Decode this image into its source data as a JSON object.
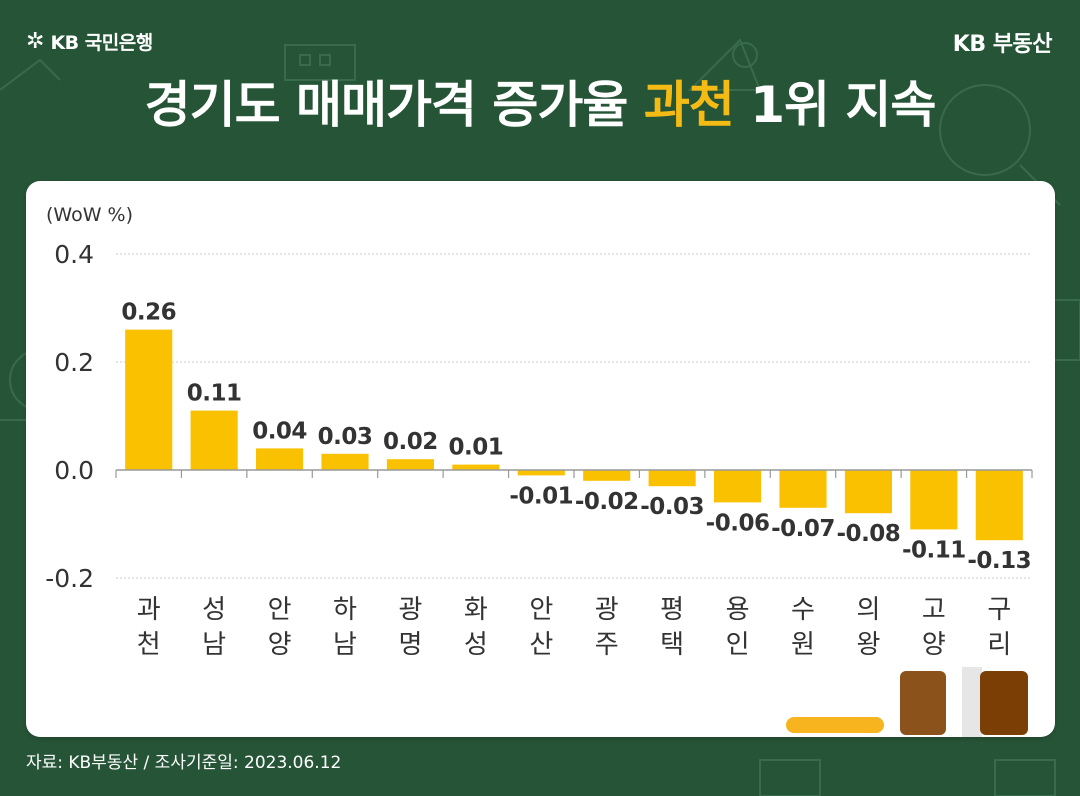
{
  "brand": {
    "bank_name": "KB 국민은행",
    "star_glyph": "✲",
    "realestate": "KB 부동산"
  },
  "headline": {
    "before": "경기도 매매가격 증가율 ",
    "highlight": "과천",
    "after": " 1위 지속"
  },
  "colors": {
    "background": "#265437",
    "bar": "#f9c100",
    "highlight": "#f4bb14",
    "card": "#ffffff"
  },
  "chart_data": {
    "type": "bar",
    "unit_label": "(WoW %)",
    "categories": [
      "과천",
      "성남",
      "안양",
      "하남",
      "광명",
      "화성",
      "안산",
      "광주",
      "평택",
      "용인",
      "수원",
      "의왕",
      "고양",
      "구리"
    ],
    "values": [
      0.26,
      0.11,
      0.04,
      0.03,
      0.02,
      0.01,
      -0.01,
      -0.02,
      -0.03,
      -0.06,
      -0.07,
      -0.08,
      -0.11,
      -0.13
    ],
    "value_labels": [
      "0.26",
      "0.11",
      "0.04",
      "0.03",
      "0.02",
      "0.01",
      "-0.01",
      "-0.02",
      "-0.03",
      "-0.06",
      "-0.07",
      "-0.08",
      "-0.11",
      "-0.13"
    ],
    "yticks": [
      "0.4",
      "0.2",
      "0.0",
      "-0.2"
    ],
    "ylim": [
      -0.2,
      0.4
    ],
    "grid": true,
    "legend": "none"
  },
  "source_text": "자료: KB부동산 / 조사기준일: 2023.06.12"
}
